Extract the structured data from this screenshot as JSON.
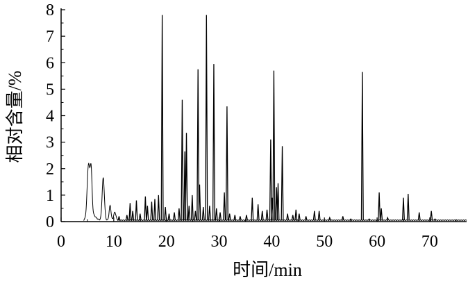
{
  "chart_data": {
    "type": "line",
    "title": "",
    "xlabel": "时间/min",
    "ylabel": "相对含量/%",
    "xlim": [
      0,
      77
    ],
    "ylim": [
      0,
      8
    ],
    "xticks": [
      "0",
      "10",
      "20",
      "30",
      "40",
      "50",
      "60",
      "70"
    ],
    "yticks": [
      "0",
      "1",
      "2",
      "3",
      "4",
      "5",
      "6",
      "7",
      "8"
    ],
    "grid": false,
    "legend": "none",
    "line_color": "#000000",
    "baseline": 0.05,
    "broad_peaks": [
      {
        "x": 5.2,
        "y": 1.95,
        "width": 0.35
      },
      {
        "x": 5.7,
        "y": 1.6,
        "width": 0.25
      },
      {
        "x": 8.0,
        "y": 1.6,
        "width": 0.3
      },
      {
        "x": 9.3,
        "y": 0.55,
        "width": 0.25
      },
      {
        "x": 10.2,
        "y": 0.3,
        "width": 0.3
      }
    ],
    "peaks": [
      {
        "x": 11.0,
        "y": 0.2
      },
      {
        "x": 12.5,
        "y": 0.25
      },
      {
        "x": 13.1,
        "y": 0.7
      },
      {
        "x": 13.6,
        "y": 0.4
      },
      {
        "x": 14.3,
        "y": 0.8
      },
      {
        "x": 15.0,
        "y": 0.3
      },
      {
        "x": 16.0,
        "y": 0.95
      },
      {
        "x": 16.4,
        "y": 0.6
      },
      {
        "x": 17.2,
        "y": 0.75
      },
      {
        "x": 17.8,
        "y": 0.85
      },
      {
        "x": 18.5,
        "y": 1.0
      },
      {
        "x": 19.2,
        "y": 7.8
      },
      {
        "x": 19.8,
        "y": 0.55
      },
      {
        "x": 20.5,
        "y": 0.3
      },
      {
        "x": 21.5,
        "y": 0.35
      },
      {
        "x": 22.4,
        "y": 0.5
      },
      {
        "x": 23.0,
        "y": 4.6
      },
      {
        "x": 23.5,
        "y": 2.65
      },
      {
        "x": 23.8,
        "y": 3.35
      },
      {
        "x": 24.3,
        "y": 0.6
      },
      {
        "x": 24.9,
        "y": 1.0
      },
      {
        "x": 25.5,
        "y": 0.4
      },
      {
        "x": 26.0,
        "y": 5.75
      },
      {
        "x": 26.3,
        "y": 1.4
      },
      {
        "x": 27.0,
        "y": 0.55
      },
      {
        "x": 27.6,
        "y": 7.8
      },
      {
        "x": 28.2,
        "y": 0.6
      },
      {
        "x": 29.0,
        "y": 5.95
      },
      {
        "x": 29.5,
        "y": 0.5
      },
      {
        "x": 30.2,
        "y": 0.35
      },
      {
        "x": 31.0,
        "y": 1.1
      },
      {
        "x": 31.5,
        "y": 4.35
      },
      {
        "x": 32.0,
        "y": 0.3
      },
      {
        "x": 33.0,
        "y": 0.25
      },
      {
        "x": 34.0,
        "y": 0.2
      },
      {
        "x": 35.2,
        "y": 0.25
      },
      {
        "x": 36.3,
        "y": 0.9
      },
      {
        "x": 37.4,
        "y": 0.65
      },
      {
        "x": 38.2,
        "y": 0.4
      },
      {
        "x": 39.1,
        "y": 0.45
      },
      {
        "x": 39.8,
        "y": 3.1
      },
      {
        "x": 40.1,
        "y": 0.9
      },
      {
        "x": 40.4,
        "y": 5.7
      },
      {
        "x": 40.9,
        "y": 1.3
      },
      {
        "x": 41.2,
        "y": 1.45
      },
      {
        "x": 42.0,
        "y": 2.85
      },
      {
        "x": 43.0,
        "y": 0.3
      },
      {
        "x": 44.0,
        "y": 0.25
      },
      {
        "x": 44.6,
        "y": 0.45
      },
      {
        "x": 45.2,
        "y": 0.3
      },
      {
        "x": 46.5,
        "y": 0.2
      },
      {
        "x": 48.1,
        "y": 0.4
      },
      {
        "x": 49.0,
        "y": 0.4
      },
      {
        "x": 51.0,
        "y": 0.15
      },
      {
        "x": 53.5,
        "y": 0.2
      },
      {
        "x": 55.0,
        "y": 0.1
      },
      {
        "x": 57.2,
        "y": 5.65
      },
      {
        "x": 58.5,
        "y": 0.1
      },
      {
        "x": 60.4,
        "y": 1.1
      },
      {
        "x": 60.8,
        "y": 0.5
      },
      {
        "x": 62.0,
        "y": 0.15
      },
      {
        "x": 65.0,
        "y": 0.9
      },
      {
        "x": 65.9,
        "y": 1.05
      },
      {
        "x": 68.0,
        "y": 0.35
      },
      {
        "x": 70.3,
        "y": 0.4
      },
      {
        "x": 71.0,
        "y": 0.1
      }
    ]
  }
}
